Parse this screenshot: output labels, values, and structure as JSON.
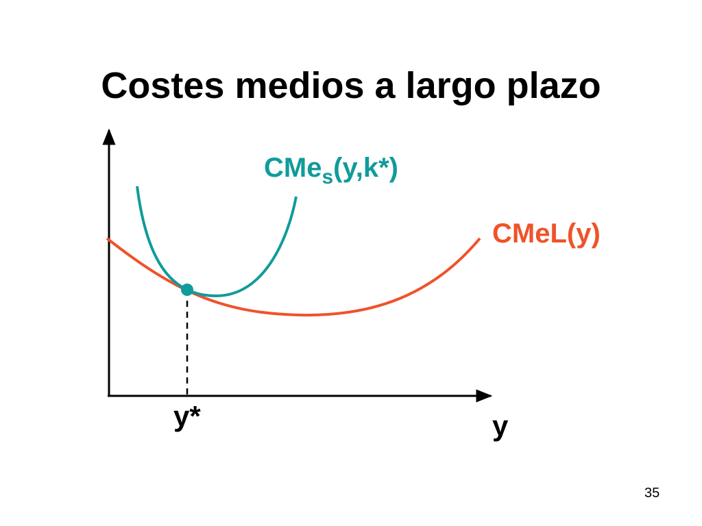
{
  "header": {
    "title": "Costes medios a largo plazo"
  },
  "diagram": {
    "short_run_curve": {
      "main": "CMe",
      "subscript": "s",
      "rest": "(y,k*)"
    },
    "long_run_curve": "CMeL(y)",
    "tangency_point": "y*",
    "x_axis": "y"
  },
  "footer": {
    "page_number": "35"
  }
}
